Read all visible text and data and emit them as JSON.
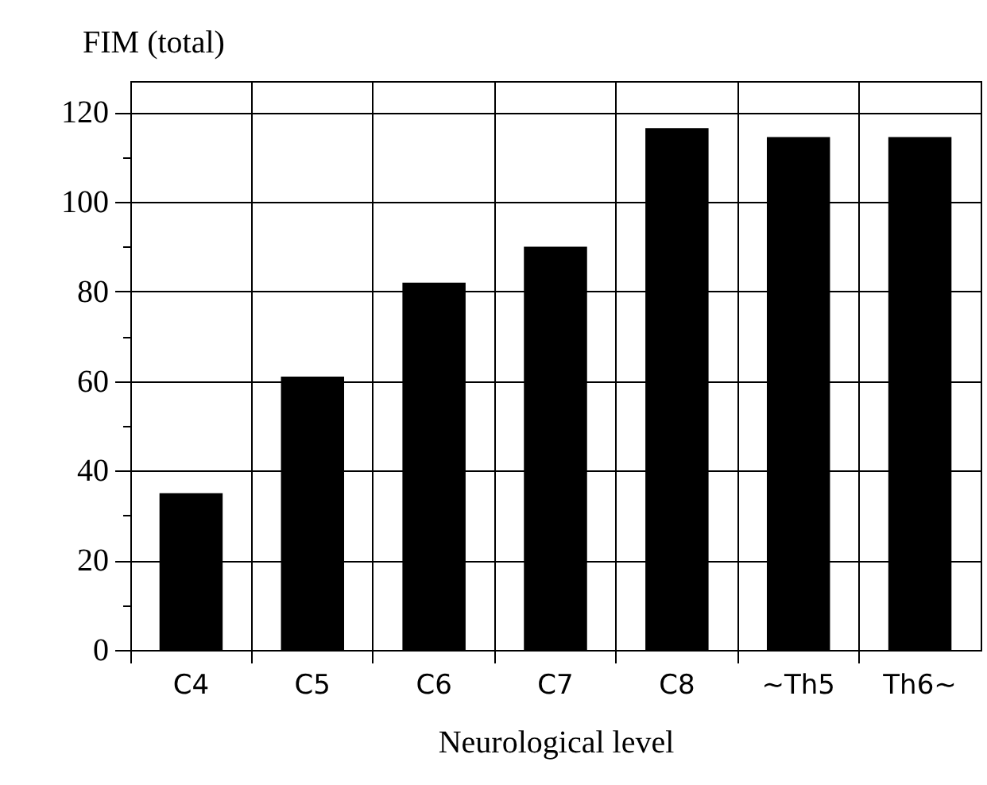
{
  "chart_data": {
    "type": "bar",
    "ylabel": "FIM (total)",
    "xlabel": "Neurological level",
    "categories": [
      "C4",
      "C5",
      "C6",
      "C7",
      "C8",
      "~Th5",
      "Th6~"
    ],
    "values": [
      35,
      61,
      82,
      90,
      116.5,
      114.5,
      114.5
    ],
    "color": "#000000",
    "ylim": [
      0,
      127
    ],
    "yticks": [
      0,
      {
        "value": 10,
        "label": null
      },
      20,
      {
        "value": 30,
        "label": null
      },
      40,
      {
        "value": 50,
        "label": null
      },
      60,
      {
        "value": 70,
        "label": null
      },
      80,
      {
        "value": 90,
        "label": null
      },
      100,
      {
        "value": 110,
        "label": null
      },
      120
    ],
    "grid": true
  }
}
